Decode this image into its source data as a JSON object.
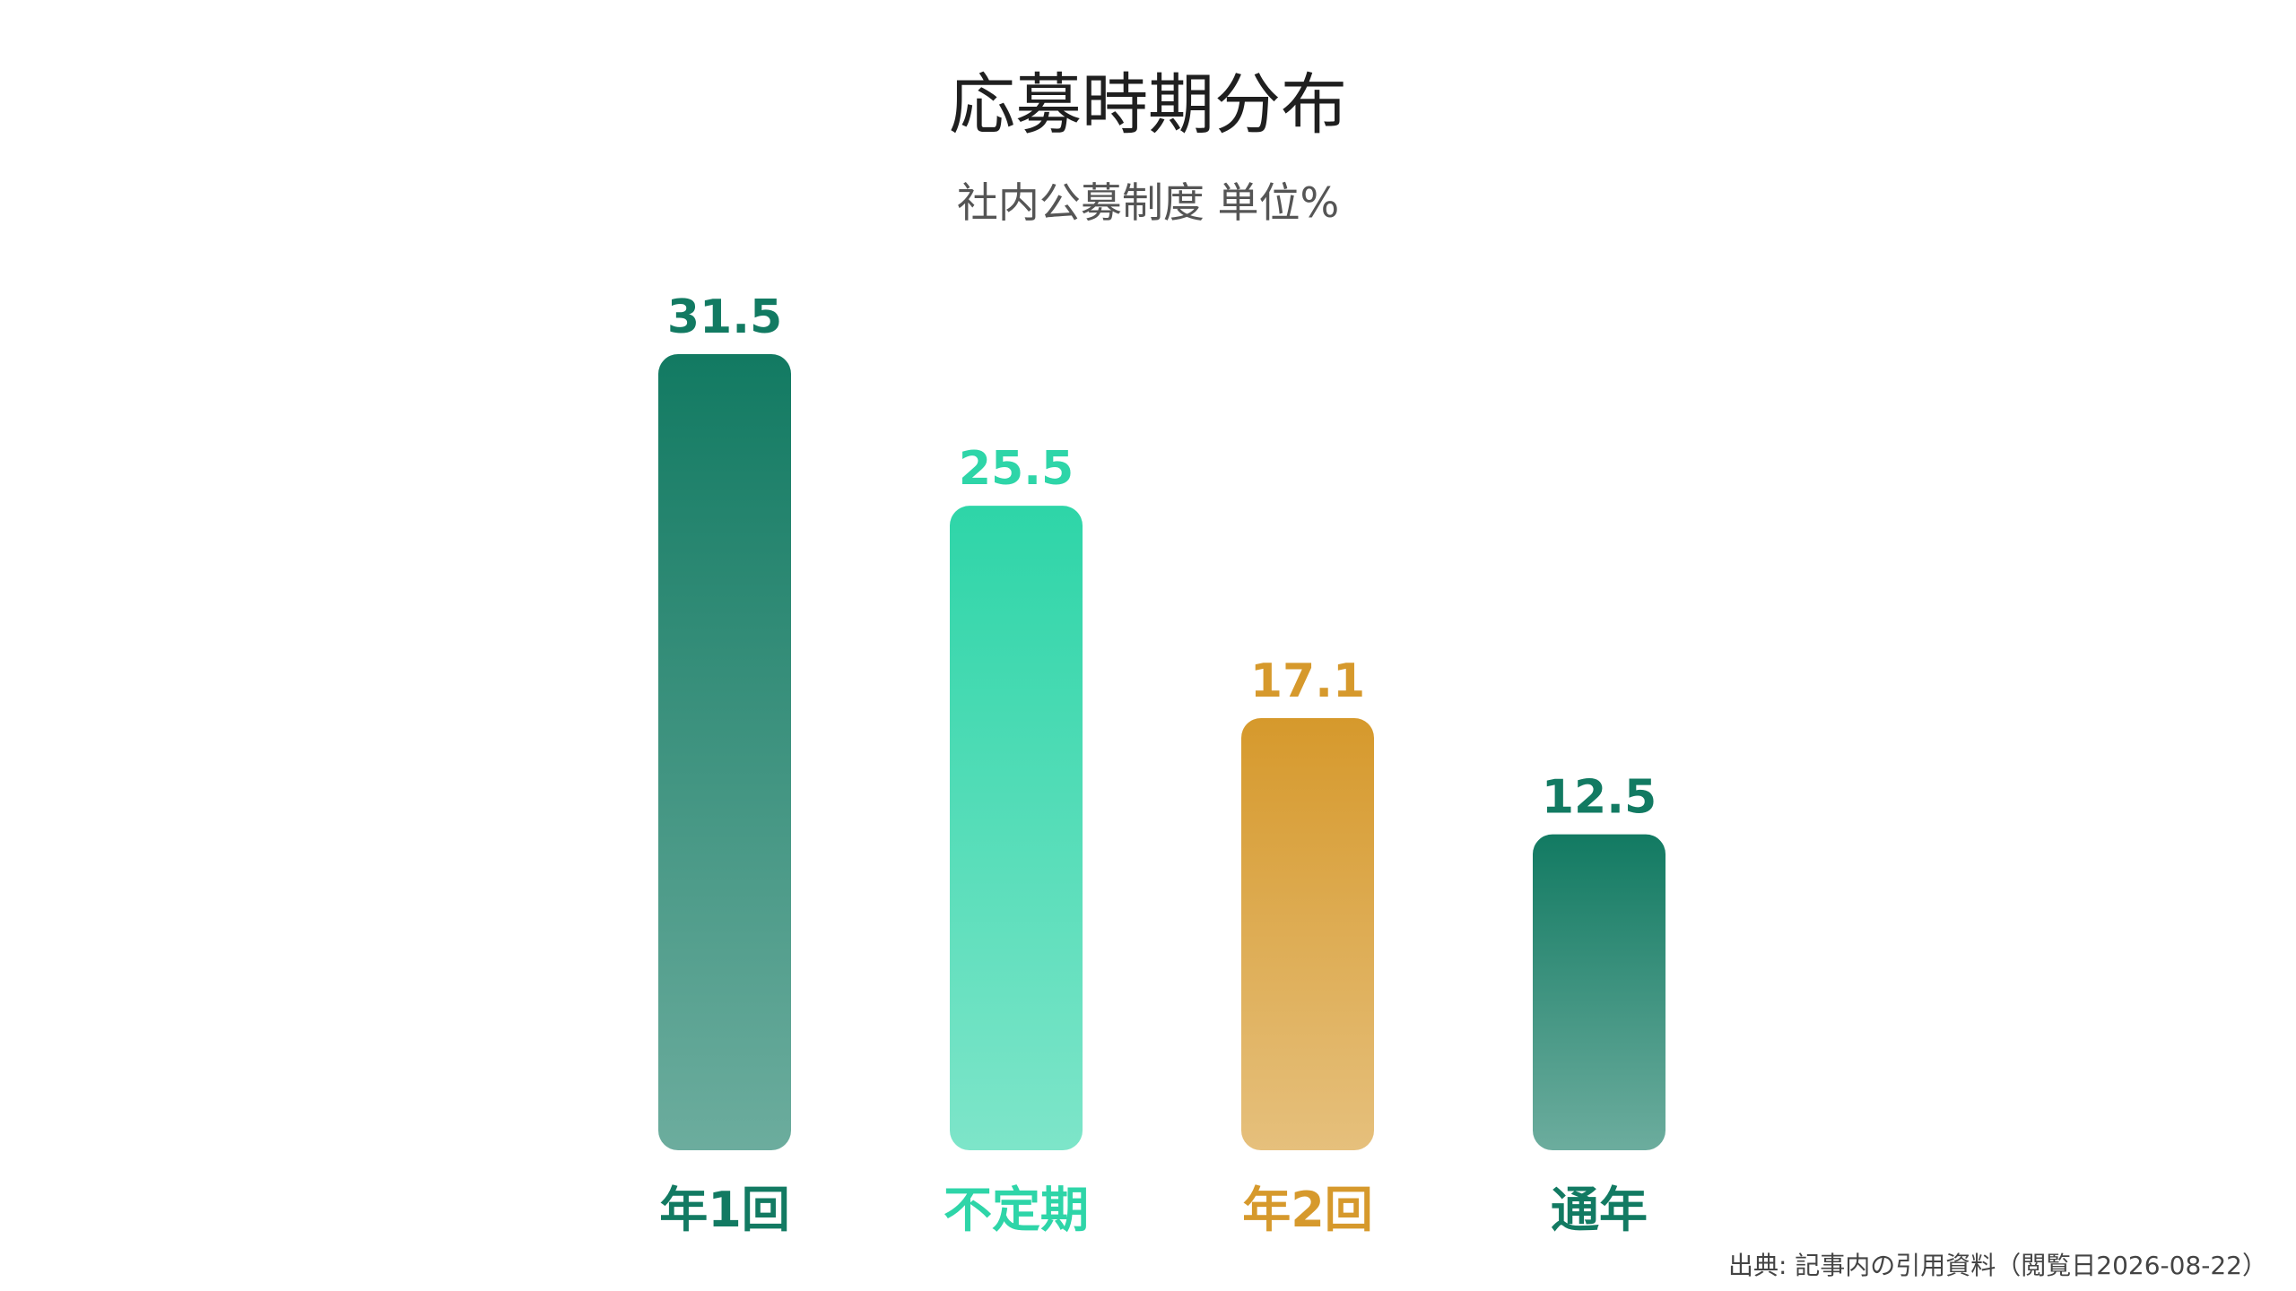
{
  "chart_data": {
    "type": "bar",
    "title": "応募時期分布",
    "subtitle": "社内公募制度 単位%",
    "categories": [
      "年1回",
      "不定期",
      "年2回",
      "通年"
    ],
    "values": [
      31.5,
      25.5,
      17.1,
      12.5
    ],
    "value_labels": [
      "31.5",
      "25.5",
      "17.1",
      "12.5"
    ],
    "colors": [
      "#127a62",
      "#2ed5a8",
      "#d6992c",
      "#127a62"
    ],
    "ylim": [
      0,
      31.5
    ],
    "grid": false,
    "legend": "none"
  },
  "source": "出典: 記事内の引用資料（閲覧日2026-08-22）"
}
